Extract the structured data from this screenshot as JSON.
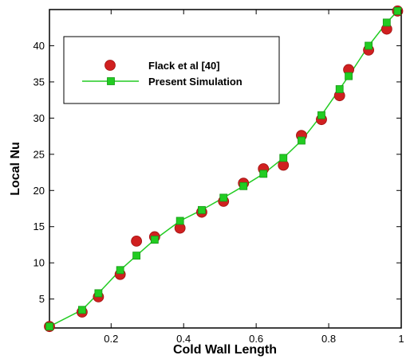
{
  "chart_data": {
    "type": "line",
    "title": "",
    "xlabel": "Cold Wall Length",
    "ylabel": "Local Nu",
    "xlim": [
      0.03,
      1.0
    ],
    "ylim": [
      1,
      45
    ],
    "xticks": [
      0.2,
      0.4,
      0.6,
      0.8,
      1
    ],
    "xtick_labels": [
      "0.2",
      "0.4",
      "0.6",
      "0.8",
      "1"
    ],
    "yticks": [
      5,
      10,
      15,
      20,
      25,
      30,
      35,
      40
    ],
    "ytick_labels": [
      "5",
      "10",
      "15",
      "20",
      "25",
      "30",
      "35",
      "40"
    ],
    "grid": false,
    "legend_position": "top-left",
    "series": [
      {
        "name": "Flack et al [40]",
        "style": "scatter",
        "marker": "circle",
        "color": "#d02020",
        "x": [
          0.03,
          0.12,
          0.165,
          0.225,
          0.27,
          0.32,
          0.39,
          0.45,
          0.51,
          0.565,
          0.62,
          0.675,
          0.725,
          0.78,
          0.83,
          0.855,
          0.91,
          0.96,
          0.99
        ],
        "y": [
          1.2,
          3.2,
          5.3,
          8.4,
          13.0,
          13.6,
          14.8,
          17.0,
          18.5,
          21.0,
          23.0,
          23.5,
          27.6,
          29.8,
          33.1,
          36.7,
          39.4,
          42.3,
          44.8
        ]
      },
      {
        "name": "Present Simulation",
        "style": "line-marker",
        "marker": "square",
        "color": "#22cc22",
        "x": [
          0.03,
          0.12,
          0.165,
          0.225,
          0.27,
          0.32,
          0.39,
          0.45,
          0.51,
          0.565,
          0.62,
          0.675,
          0.725,
          0.78,
          0.83,
          0.855,
          0.91,
          0.96,
          0.99
        ],
        "y": [
          1.2,
          3.5,
          5.8,
          9.0,
          11.0,
          13.2,
          15.8,
          17.3,
          19.0,
          20.6,
          22.3,
          24.5,
          26.9,
          30.4,
          34.0,
          35.8,
          40.0,
          43.2,
          44.8
        ]
      }
    ]
  }
}
